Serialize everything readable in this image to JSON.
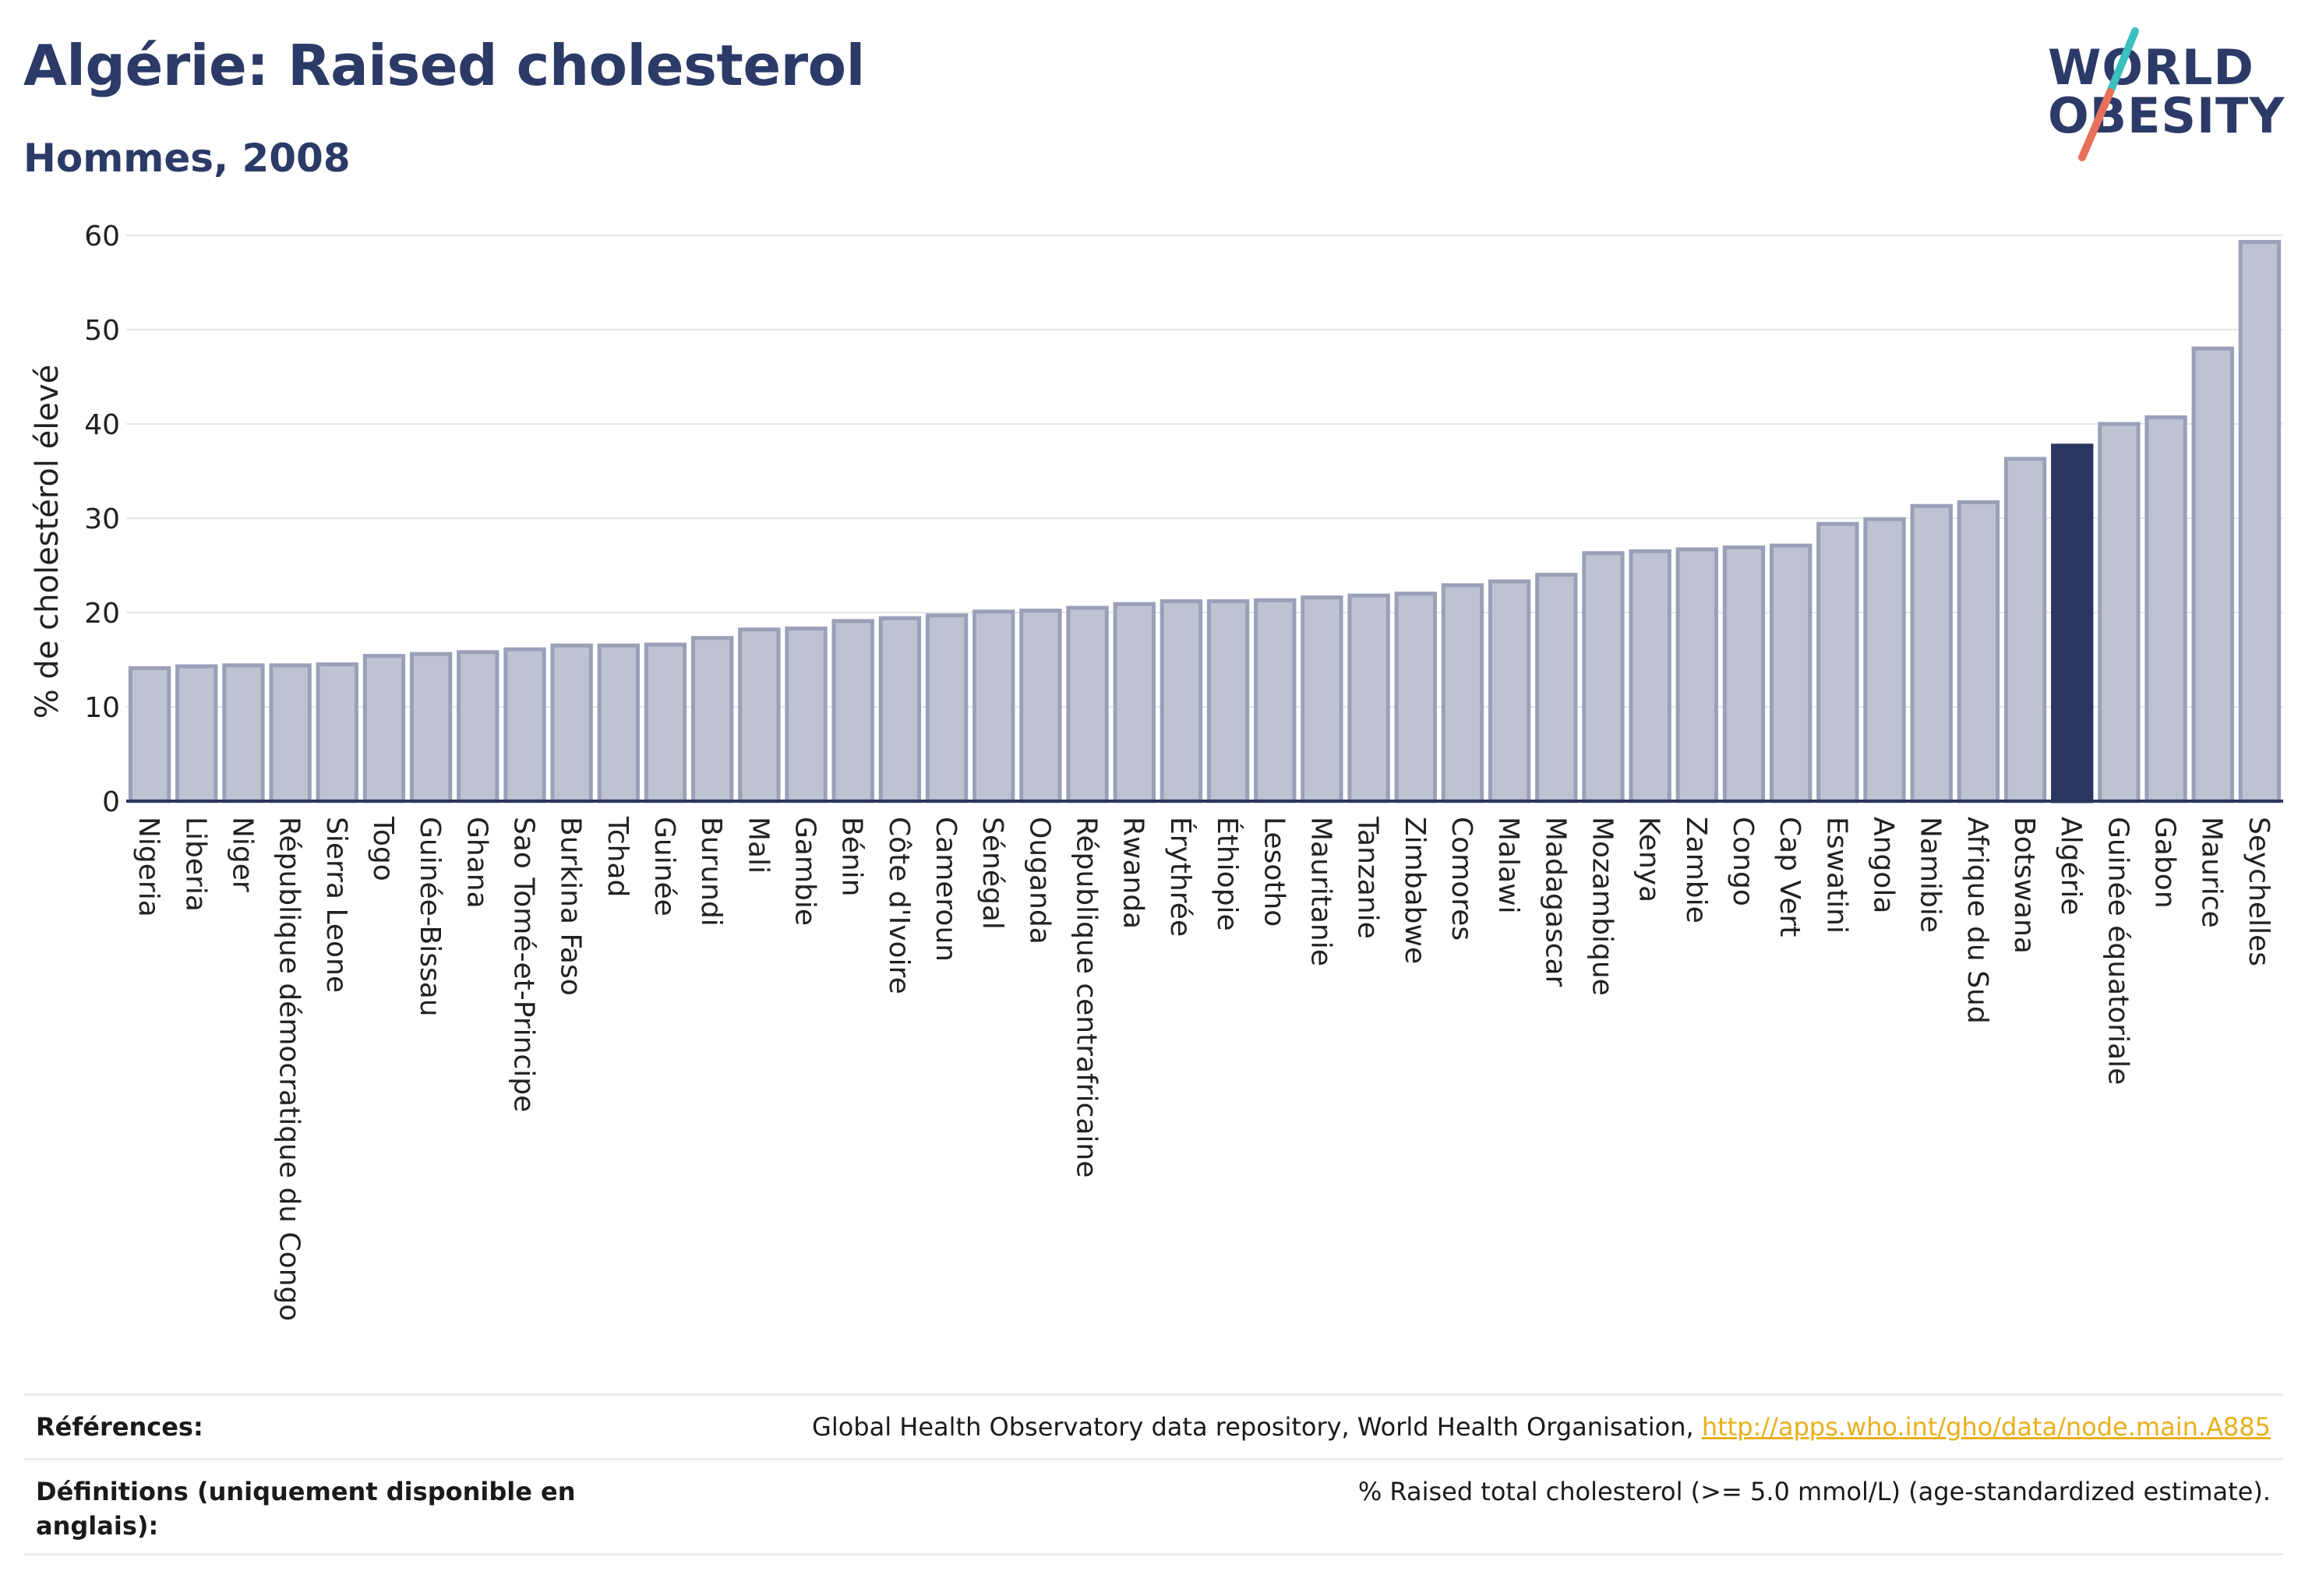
{
  "header": {
    "title": "Algérie: Raised cholesterol",
    "subtitle": "Hommes, 2008"
  },
  "logo": {
    "text_line1": "WORLD",
    "text_line2": "OBESITY"
  },
  "colors": {
    "highlight": "#2b3660",
    "bar_fill": "#bfc3d1",
    "bar_stroke": "#9aa0b8",
    "title": "#2b3a67",
    "link": "#e8b01c",
    "logo_teal": "#3bbfbf",
    "logo_coral": "#e8705a"
  },
  "chart_data": {
    "type": "bar",
    "ylabel": "% de cholestérol élevé",
    "xlabel": "",
    "ylim": [
      0,
      60
    ],
    "yticks": [
      0,
      10,
      20,
      30,
      40,
      50,
      60
    ],
    "grid": true,
    "highlight_category": "Algérie",
    "categories": [
      "Nigeria",
      "Liberia",
      "Niger",
      "République démocratique du Congo",
      "Sierra Leone",
      "Togo",
      "Guinée-Bissau",
      "Ghana",
      "Sao Tomé-et-Principe",
      "Burkina Faso",
      "Tchad",
      "Guinée",
      "Burundi",
      "Mali",
      "Gambie",
      "Bénin",
      "Côte d'Ivoire",
      "Cameroun",
      "Sénégal",
      "Ouganda",
      "République centrafricaine",
      "Rwanda",
      "Érythrée",
      "Éthiopie",
      "Lesotho",
      "Mauritanie",
      "Tanzanie",
      "Zimbabwe",
      "Comores",
      "Malawi",
      "Madagascar",
      "Mozambique",
      "Kenya",
      "Zambie",
      "Congo",
      "Cap Vert",
      "Eswatini",
      "Angola",
      "Namibie",
      "Afrique du Sud",
      "Botswana",
      "Algérie",
      "Guinée équatoriale",
      "Gabon",
      "Maurice",
      "Seychelles"
    ],
    "values": [
      14.1,
      14.3,
      14.4,
      14.4,
      14.5,
      15.4,
      15.6,
      15.8,
      16.1,
      16.5,
      16.5,
      16.6,
      17.3,
      18.2,
      18.3,
      19.1,
      19.4,
      19.7,
      20.1,
      20.2,
      20.5,
      20.9,
      21.2,
      21.2,
      21.3,
      21.6,
      21.8,
      22.0,
      22.9,
      23.3,
      24.0,
      26.3,
      26.5,
      26.7,
      26.9,
      27.1,
      29.4,
      29.9,
      31.3,
      31.7,
      36.3,
      37.7,
      40.0,
      40.7,
      48.0,
      59.3
    ]
  },
  "references": {
    "label": "Références:",
    "text": "Global Health Observatory data repository, World Health Organisation,",
    "link": "http://apps.who.int/gho/data/node.main.A885"
  },
  "definitions": {
    "label": "Définitions (uniquement disponible en anglais):",
    "text": "% Raised total cholesterol (>= 5.0 mmol/L) (age-standardized estimate)."
  }
}
